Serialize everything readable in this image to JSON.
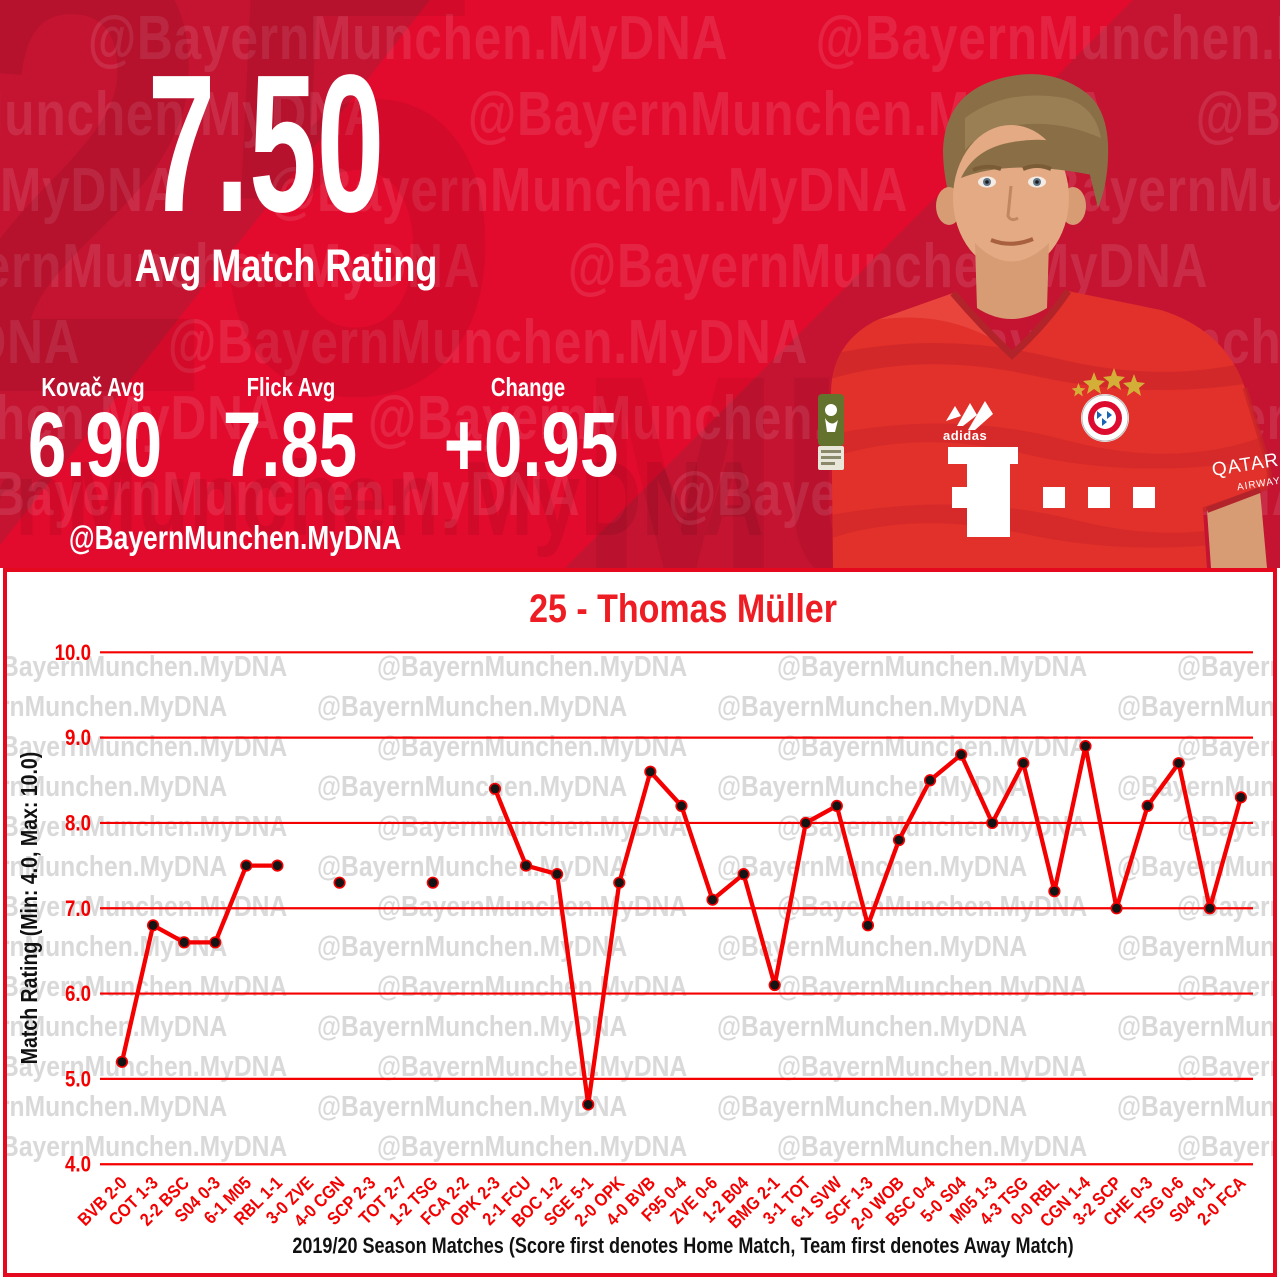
{
  "header": {
    "avg_rating": "7.50",
    "avg_rating_label": "Avg Match Rating",
    "stats": [
      {
        "label": "Kovač Avg",
        "value": "6.90"
      },
      {
        "label": "Flick Avg",
        "value": "7.85"
      },
      {
        "label": "Change",
        "value": "+0.95"
      }
    ],
    "handle": "@BayernMunchen.MyDNA",
    "watermark_text": "@BayernMunchen.MyDNA",
    "big_number_watermark": "25",
    "big_letters_watermark": "MU",
    "giant_bottom_watermark": "rnMunchen.MyDNA",
    "colors": {
      "bg": "#e30b2d",
      "bg_dark": "#c41431",
      "text": "#ffffff"
    }
  },
  "player": {
    "number": "25",
    "name": "Thomas Müller",
    "jersey": {
      "brand": "adidas",
      "sponsor": "T···",
      "sleeve_sponsor_line1": "QATAR",
      "sleeve_sponsor_line2": "AIRWAYS",
      "crest": "FC BAYERN MÜNCHEN",
      "patch": "BUNDESLIGA"
    }
  },
  "chart_data": {
    "type": "line",
    "title": "25 - Thomas Müller",
    "ylabel": "Match Rating (Min: 4.0, Max: 10.0)",
    "xlabel": "2019/20 Season Matches (Score first denotes Home Match, Team first denotes Away Match)",
    "ylim": [
      4.0,
      10.0
    ],
    "yticks": [
      10.0,
      9.0,
      8.0,
      7.0,
      6.0,
      5.0,
      4.0
    ],
    "ytick_labels": [
      "10.0",
      "9.0",
      "8.0",
      "7.0",
      "6.0",
      "5.0",
      "4.0"
    ],
    "grid": true,
    "legend": "none",
    "watermark": "@BayernMunchen.MyDNA",
    "categories": [
      "BVB 2-0",
      "COT 1-3",
      "2-2 BSC",
      "S04 0-3",
      "6-1 M05",
      "RBL 1-1",
      "3-0 ZVE",
      "4-0 CGN",
      "SCP 2-3",
      "TOT 2-7",
      "1-2 TSG",
      "FCA 2-2",
      "OPK 2-3",
      "2-1 FCU",
      "BOC 1-2",
      "SGE 5-1",
      "2-0 OPK",
      "4-0 BVB",
      "F95 0-4",
      "ZVE 0-6",
      "1-2 B04",
      "BMG 2-1",
      "3-1 TOT",
      "6-1 SVW",
      "SCF 1-3",
      "2-0 WOB",
      "BSC 0-4",
      "5-0 S04",
      "M05 1-3",
      "4-3 TSG",
      "0-0 RBL",
      "CGN 1-4",
      "3-2 SCP",
      "CHE 0-3",
      "TSG 0-6",
      "S04 0-1",
      "2-0 FCA"
    ],
    "values": [
      5.2,
      6.8,
      6.6,
      6.6,
      7.5,
      7.5,
      null,
      7.3,
      null,
      null,
      7.3,
      null,
      8.4,
      7.5,
      7.4,
      4.7,
      7.3,
      8.6,
      8.2,
      7.1,
      7.4,
      6.1,
      8.0,
      8.2,
      6.8,
      7.8,
      8.5,
      8.8,
      8.0,
      8.7,
      7.2,
      8.9,
      7.0,
      8.2,
      8.7,
      7.0,
      8.3
    ],
    "colors": {
      "line": "#f40000",
      "marker": "#141414",
      "marker_edge": "#f40000",
      "grid": "#f40000",
      "tick": "#f40000",
      "title": "#ee1c23",
      "axis_text": "#111111",
      "watermark": "#d9d9d9",
      "border": "#e50920"
    }
  }
}
